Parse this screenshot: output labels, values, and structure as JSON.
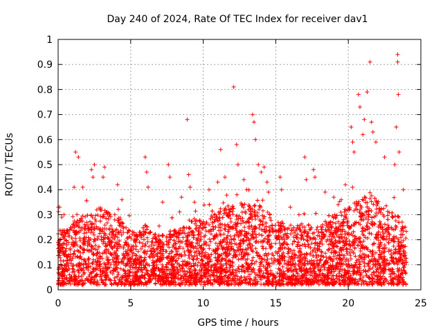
{
  "chart_data": {
    "type": "scatter",
    "title": "Day 240 of 2024, Rate Of TEC Index for receiver dav1",
    "xlabel": "GPS time / hours",
    "ylabel": "ROTI / TECUs",
    "xlim": [
      0,
      25
    ],
    "ylim": [
      0,
      1
    ],
    "xticks": [
      "0",
      "5",
      "10",
      "15",
      "20",
      "25"
    ],
    "yticks": [
      "0",
      "0.1",
      "0.2",
      "0.3",
      "0.4",
      "0.5",
      "0.6",
      "0.7",
      "0.8",
      "0.9",
      "1"
    ],
    "grid": true,
    "marker": "+",
    "color": "#ff0000",
    "series": [
      {
        "points": [
          [
            0.02,
            0.33
          ],
          [
            0.1,
            0.33
          ],
          [
            0.25,
            0.29
          ],
          [
            0.4,
            0.3
          ],
          [
            1.2,
            0.55
          ],
          [
            1.4,
            0.53
          ],
          [
            1.1,
            0.41
          ],
          [
            1.7,
            0.41
          ],
          [
            2.3,
            0.48
          ],
          [
            2.4,
            0.45
          ],
          [
            2.5,
            0.5
          ],
          [
            3.2,
            0.49
          ],
          [
            3.1,
            0.45
          ],
          [
            4.1,
            0.42
          ],
          [
            4.4,
            0.36
          ],
          [
            6.0,
            0.53
          ],
          [
            6.1,
            0.47
          ],
          [
            6.2,
            0.41
          ],
          [
            7.2,
            0.35
          ],
          [
            7.6,
            0.5
          ],
          [
            7.7,
            0.45
          ],
          [
            8.5,
            0.37
          ],
          [
            8.9,
            0.68
          ],
          [
            9.0,
            0.46
          ],
          [
            9.1,
            0.41
          ],
          [
            9.4,
            0.35
          ],
          [
            10.4,
            0.4
          ],
          [
            11.0,
            0.43
          ],
          [
            11.2,
            0.56
          ],
          [
            11.5,
            0.45
          ],
          [
            12.1,
            0.81
          ],
          [
            12.3,
            0.58
          ],
          [
            12.4,
            0.5
          ],
          [
            12.8,
            0.44
          ],
          [
            13.4,
            0.7
          ],
          [
            13.5,
            0.67
          ],
          [
            13.6,
            0.6
          ],
          [
            13.8,
            0.5
          ],
          [
            14.0,
            0.47
          ],
          [
            14.2,
            0.49
          ],
          [
            14.4,
            0.43
          ],
          [
            14.5,
            0.39
          ],
          [
            15.3,
            0.45
          ],
          [
            15.4,
            0.4
          ],
          [
            16.0,
            0.33
          ],
          [
            16.6,
            0.3
          ],
          [
            17.0,
            0.53
          ],
          [
            17.1,
            0.44
          ],
          [
            17.6,
            0.48
          ],
          [
            17.7,
            0.45
          ],
          [
            18.4,
            0.39
          ],
          [
            19.0,
            0.37
          ],
          [
            19.3,
            0.34
          ],
          [
            19.8,
            0.42
          ],
          [
            20.2,
            0.65
          ],
          [
            20.3,
            0.59
          ],
          [
            20.4,
            0.55
          ],
          [
            20.7,
            0.78
          ],
          [
            20.8,
            0.73
          ],
          [
            21.0,
            0.62
          ],
          [
            21.1,
            0.68
          ],
          [
            21.3,
            0.79
          ],
          [
            21.5,
            0.91
          ],
          [
            21.6,
            0.67
          ],
          [
            21.7,
            0.63
          ],
          [
            21.9,
            0.59
          ],
          [
            22.5,
            0.53
          ],
          [
            23.2,
            0.5
          ],
          [
            23.3,
            0.65
          ],
          [
            23.4,
            0.94
          ],
          [
            23.4,
            0.91
          ],
          [
            23.45,
            0.78
          ],
          [
            23.5,
            0.55
          ],
          [
            23.8,
            0.4
          ]
        ],
        "envelope": [
          [
            0,
            0.25
          ],
          [
            0.5,
            0.23
          ],
          [
            1,
            0.27
          ],
          [
            1.5,
            0.29
          ],
          [
            2,
            0.31
          ],
          [
            2.5,
            0.32
          ],
          [
            3,
            0.33
          ],
          [
            3.5,
            0.31
          ],
          [
            4,
            0.3
          ],
          [
            4.5,
            0.28
          ],
          [
            5,
            0.24
          ],
          [
            5.5,
            0.22
          ],
          [
            6,
            0.26
          ],
          [
            6.5,
            0.24
          ],
          [
            7,
            0.22
          ],
          [
            7.5,
            0.23
          ],
          [
            8,
            0.24
          ],
          [
            8.5,
            0.25
          ],
          [
            9,
            0.27
          ],
          [
            9.5,
            0.28
          ],
          [
            10,
            0.28
          ],
          [
            10.5,
            0.3
          ],
          [
            11,
            0.31
          ],
          [
            11.5,
            0.33
          ],
          [
            12,
            0.35
          ],
          [
            12.5,
            0.35
          ],
          [
            13,
            0.34
          ],
          [
            13.5,
            0.35
          ],
          [
            14,
            0.37
          ],
          [
            14.5,
            0.33
          ],
          [
            15,
            0.28
          ],
          [
            15.5,
            0.27
          ],
          [
            16,
            0.25
          ],
          [
            16.5,
            0.26
          ],
          [
            17,
            0.27
          ],
          [
            17.5,
            0.25
          ],
          [
            18,
            0.26
          ],
          [
            18.5,
            0.28
          ],
          [
            19,
            0.3
          ],
          [
            19.5,
            0.32
          ],
          [
            20,
            0.33
          ],
          [
            20.5,
            0.35
          ],
          [
            21,
            0.38
          ],
          [
            21.5,
            0.4
          ],
          [
            22,
            0.36
          ],
          [
            22.5,
            0.32
          ],
          [
            23,
            0.31
          ],
          [
            23.5,
            0.29
          ],
          [
            24,
            0.27
          ]
        ]
      }
    ]
  }
}
